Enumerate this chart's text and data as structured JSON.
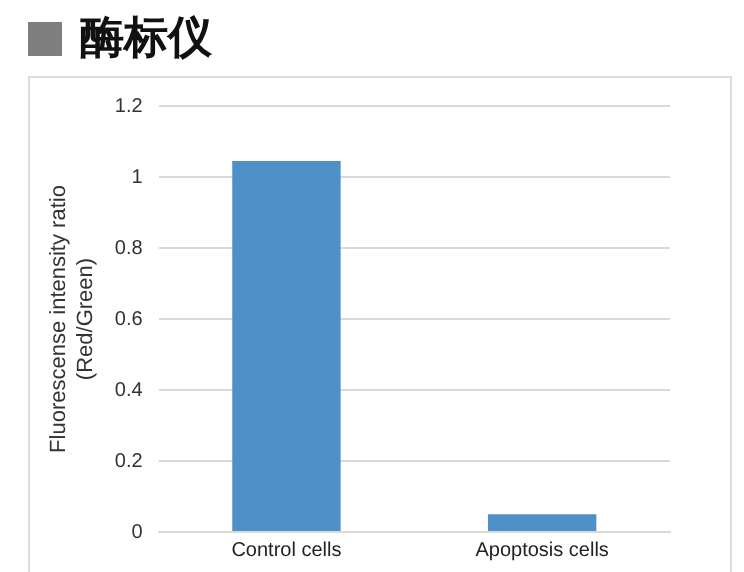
{
  "chart_data": {
    "type": "bar",
    "title": "酶标仪",
    "ylabel": "Fluorescense intensity ratio\n(Red/Green)",
    "categories": [
      "Control cells",
      "Apoptosis cells"
    ],
    "values": [
      1.045,
      0.05
    ],
    "color": "#5090c9",
    "ylim": [
      0,
      1.2
    ],
    "yticks": [
      0,
      0.2,
      0.4,
      0.6,
      0.8,
      1,
      1.2
    ],
    "grid": "y",
    "legend": false
  }
}
